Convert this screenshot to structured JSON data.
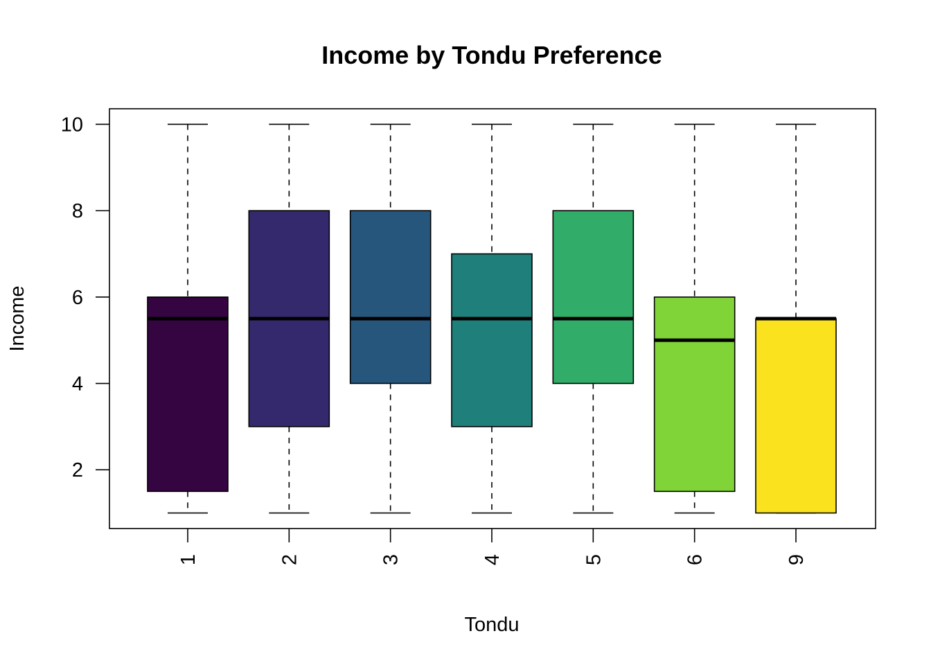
{
  "chart_data": {
    "type": "boxplot",
    "title": "Income by Tondu Preference",
    "xlabel": "Tondu",
    "ylabel": "Income",
    "ylim": [
      0.64,
      10.36
    ],
    "yticks": [
      2,
      4,
      6,
      8,
      10
    ],
    "grid": false,
    "categories": [
      "1",
      "2",
      "3",
      "4",
      "5",
      "6",
      "9"
    ],
    "boxes": [
      {
        "category": "1",
        "min": 1,
        "q1": 1.5,
        "median": 5.5,
        "q3": 6,
        "max": 10,
        "color": "#350541"
      },
      {
        "category": "2",
        "min": 1,
        "q1": 3,
        "median": 5.5,
        "q3": 8,
        "max": 10,
        "color": "#35296D"
      },
      {
        "category": "3",
        "min": 1,
        "q1": 4,
        "median": 5.5,
        "q3": 8,
        "max": 10,
        "color": "#27567C"
      },
      {
        "category": "4",
        "min": 1,
        "q1": 3,
        "median": 5.5,
        "q3": 7,
        "max": 10,
        "color": "#1F7F7A"
      },
      {
        "category": "5",
        "min": 1,
        "q1": 4,
        "median": 5.5,
        "q3": 8,
        "max": 10,
        "color": "#31AD69"
      },
      {
        "category": "6",
        "min": 1,
        "q1": 1.5,
        "median": 5,
        "q3": 6,
        "max": 10,
        "color": "#80D438"
      },
      {
        "category": "9",
        "min": 1,
        "q1": 1,
        "median": 5.5,
        "q3": 5.5,
        "max": 10,
        "color": "#FBE21E"
      }
    ]
  }
}
